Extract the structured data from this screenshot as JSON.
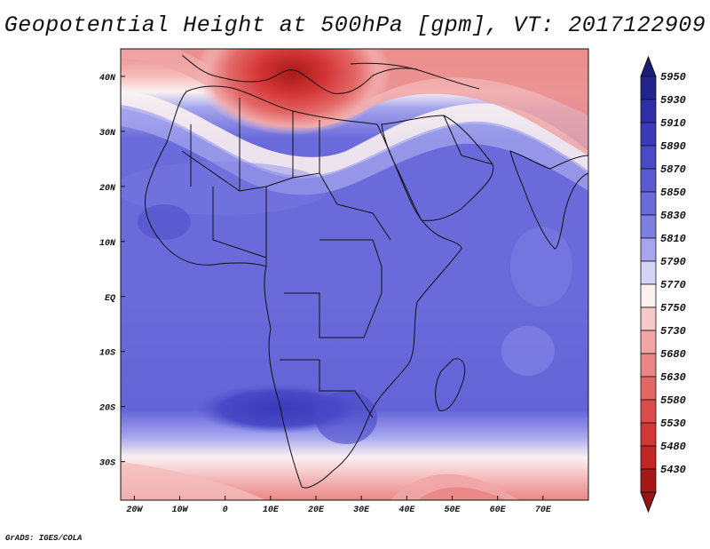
{
  "title": "Geopotential Height at 500hPa [gpm], VT: 2017122909",
  "credit": "GrADS: IGES/COLA",
  "map": {
    "region": "Africa and Middle East",
    "lon_range": [
      -23,
      80
    ],
    "lat_range": [
      -37,
      45
    ],
    "lon_ticks": [
      {
        "value": -20,
        "label": "20W"
      },
      {
        "value": -10,
        "label": "10W"
      },
      {
        "value": 0,
        "label": "0"
      },
      {
        "value": 10,
        "label": "10E"
      },
      {
        "value": 20,
        "label": "20E"
      },
      {
        "value": 30,
        "label": "30E"
      },
      {
        "value": 40,
        "label": "40E"
      },
      {
        "value": 50,
        "label": "50E"
      },
      {
        "value": 60,
        "label": "60E"
      },
      {
        "value": 70,
        "label": "70E"
      }
    ],
    "lat_ticks": [
      {
        "value": 40,
        "label": "40N"
      },
      {
        "value": 30,
        "label": "30N"
      },
      {
        "value": 20,
        "label": "20N"
      },
      {
        "value": 10,
        "label": "10N"
      },
      {
        "value": 0,
        "label": "EQ"
      },
      {
        "value": -10,
        "label": "10S"
      },
      {
        "value": -20,
        "label": "20S"
      },
      {
        "value": -30,
        "label": "30S"
      }
    ]
  },
  "colorbar": {
    "levels": [
      {
        "value": "5950",
        "color": "#23238f"
      },
      {
        "value": "5930",
        "color": "#2e2ea8"
      },
      {
        "value": "5910",
        "color": "#3a3ab8"
      },
      {
        "value": "5890",
        "color": "#4a4ac8"
      },
      {
        "value": "5870",
        "color": "#5a5ad2"
      },
      {
        "value": "5850",
        "color": "#6a6adb"
      },
      {
        "value": "5830",
        "color": "#7e7ee3"
      },
      {
        "value": "5810",
        "color": "#a6a6ee"
      },
      {
        "value": "5790",
        "color": "#d4d4f7"
      },
      {
        "value": "5770",
        "color": "#fbf1f1"
      },
      {
        "value": "5750",
        "color": "#f6c8c8"
      },
      {
        "value": "5730",
        "color": "#f0a6a6"
      },
      {
        "value": "5680",
        "color": "#ea8686"
      },
      {
        "value": "5630",
        "color": "#e46767"
      },
      {
        "value": "5580",
        "color": "#dd4c4c"
      },
      {
        "value": "5530",
        "color": "#d43636"
      },
      {
        "value": "5480",
        "color": "#c32525"
      },
      {
        "value": "5430",
        "color": "#a81818"
      }
    ],
    "top_arrow_color": "#1c1c7a",
    "bottom_arrow_color": "#961414"
  }
}
